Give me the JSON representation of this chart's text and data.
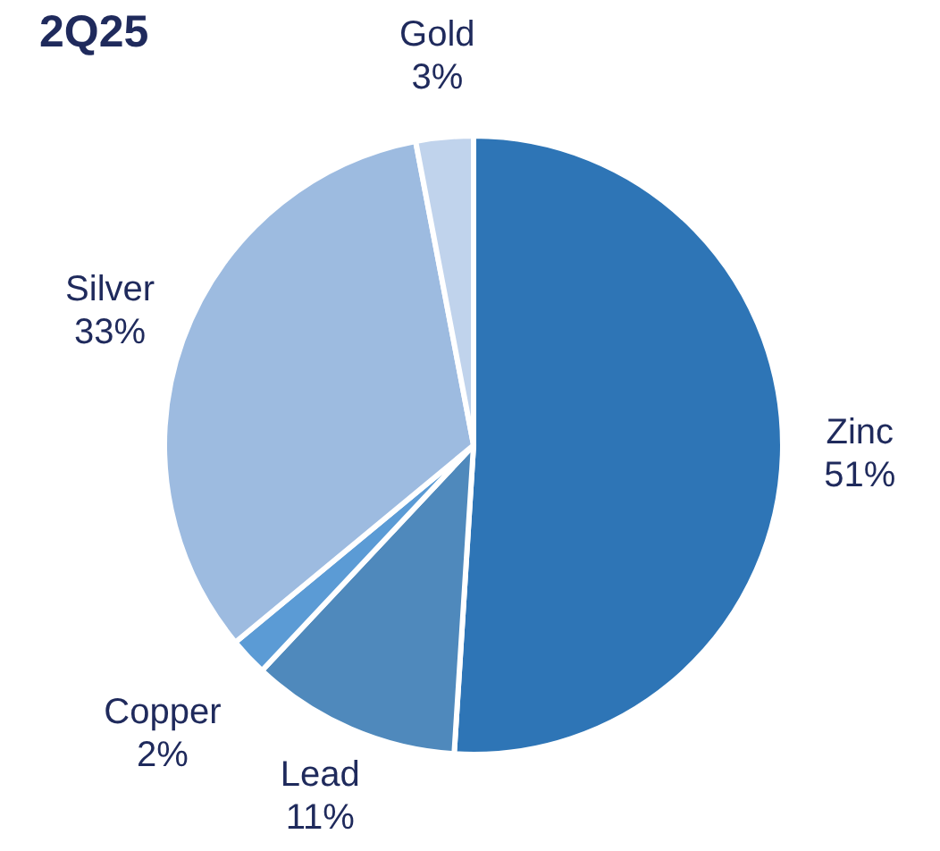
{
  "chart_data": {
    "type": "pie",
    "title": "2Q25",
    "categories": [
      "Zinc",
      "Lead",
      "Copper",
      "Silver",
      "Gold"
    ],
    "values": [
      51,
      11,
      2,
      33,
      3
    ],
    "colors": [
      "#2e75b6",
      "#4f89bc",
      "#5b9bd5",
      "#9dbbe0",
      "#c0d3ec"
    ],
    "value_labels": [
      "51%",
      "11%",
      "2%",
      "33%",
      "3%"
    ]
  }
}
